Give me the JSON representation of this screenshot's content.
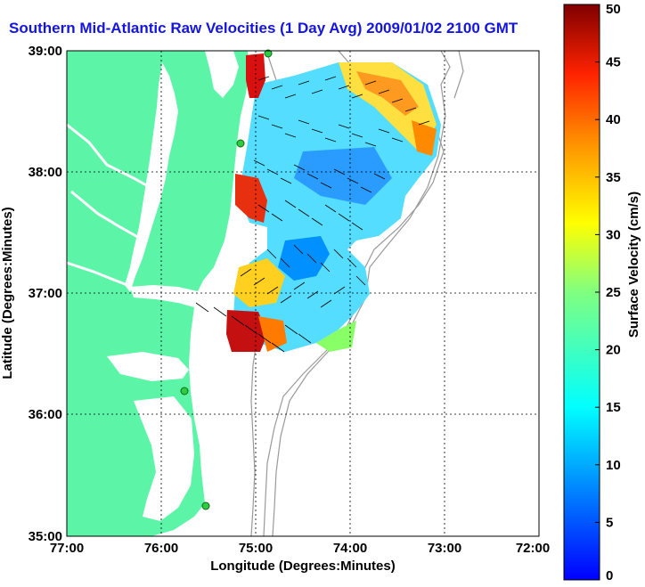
{
  "title": "Southern Mid-Atlantic Raw Velocities (1 Day Avg) 2009/01/02 2100 GMT",
  "x_axis": {
    "label": "Longitude (Degrees:Minutes)",
    "ticks": [
      "77:00",
      "76:00",
      "75:00",
      "74:00",
      "73:00",
      "72:00"
    ]
  },
  "y_axis": {
    "label": "Latitude (Degrees:Minutes)",
    "ticks": [
      "39:00",
      "38:00",
      "37:00",
      "36:00",
      "35:00"
    ]
  },
  "colorbar": {
    "label": "Surface Velocity (cm/s)",
    "ticks": [
      "0",
      "5",
      "10",
      "15",
      "20",
      "25",
      "30",
      "35",
      "40",
      "45",
      "50"
    ],
    "min": 0,
    "max": 50
  },
  "colors": {
    "land": "#5cf5a8",
    "title": "#1515e0",
    "bathymetry": "#999999",
    "station": "#2ecc40"
  },
  "chart_data": {
    "type": "heatmap",
    "title": "Southern Mid-Atlantic Raw Velocities (1 Day Avg) 2009/01/02 2100 GMT",
    "xlabel": "Longitude (Degrees:Minutes)",
    "ylabel": "Latitude (Degrees:Minutes)",
    "xlim": [
      -77,
      -72
    ],
    "ylim": [
      35,
      39
    ],
    "colorbar_range": [
      0,
      50
    ],
    "colorbar_label": "Surface Velocity (cm/s)",
    "grid": true,
    "high_speed_regions_cm_s": [
      {
        "lon": -75.05,
        "lat": 38.8,
        "speed": 48
      },
      {
        "lon": -75.1,
        "lat": 37.8,
        "speed": 45
      },
      {
        "lon": -74.8,
        "lat": 36.7,
        "speed": 45
      },
      {
        "lon": -73.4,
        "lat": 38.5,
        "speed": 33
      }
    ],
    "stations_deg": [
      {
        "lon": -74.87,
        "lat": 38.99
      },
      {
        "lon": -75.15,
        "lat": 38.22
      },
      {
        "lon": -75.8,
        "lat": 36.18
      },
      {
        "lon": -75.52,
        "lat": 35.25
      }
    ]
  }
}
